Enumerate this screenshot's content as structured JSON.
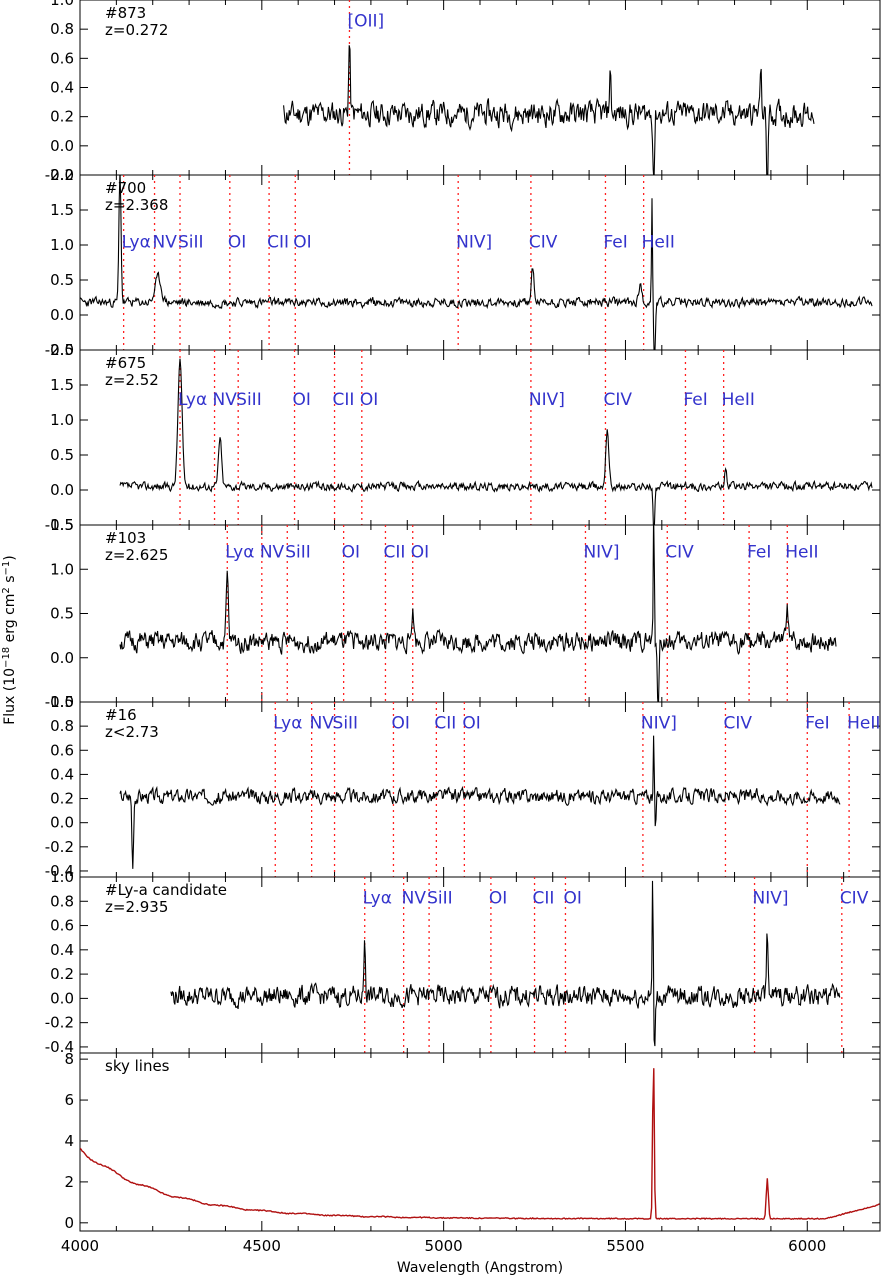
{
  "chart_data": {
    "type": "line",
    "xlabel": "Wavelength (Angstrom)",
    "ylabel": "Flux (10",
    "ylabel_sup": "−18",
    "ylabel_tail": " erg cm",
    "ylabel_sup2": "2",
    "ylabel_tail2": " s",
    "ylabel_sup3": "−1",
    "ylabel_end": ")",
    "xlim": [
      4000,
      6200
    ],
    "xticks": [
      4000,
      4500,
      5000,
      5500,
      6000
    ],
    "colors": {
      "spectrum": "#000000",
      "sky": "#b01010",
      "lines": "#ff2020",
      "labels": "#3333cc"
    },
    "panels": [
      {
        "id": "#873",
        "z": "z=0.272",
        "ylim": [
          -0.2,
          1.0
        ],
        "yticks": [
          "-0.2",
          "0.0",
          "0.2",
          "0.4",
          "0.6",
          "0.8",
          "1.0"
        ],
        "x_start": 4560,
        "x_end": 6020,
        "baseline": 0.22,
        "noise": 0.13,
        "seed": 11,
        "emission": [
          {
            "x": 4741,
            "h": 0.5,
            "w": 3
          },
          {
            "x": 5458,
            "h": 0.3,
            "w": 3
          },
          {
            "x": 5872,
            "h": 0.3,
            "w": 3
          }
        ],
        "dips": [
          {
            "x": 5578,
            "h": -0.45
          },
          {
            "x": 5890,
            "h": -0.5
          }
        ],
        "lines": [
          {
            "label": "[OII]",
            "x": 4741,
            "y": 0.86
          }
        ]
      },
      {
        "id": "#700",
        "z": "z=2.368",
        "ylim": [
          -0.5,
          2.0
        ],
        "yticks": [
          "-0.5",
          "0.0",
          "0.5",
          "1.0",
          "1.5",
          "2.0"
        ],
        "x_start": 4000,
        "x_end": 6180,
        "baseline": 0.18,
        "noise": 0.1,
        "seed": 23,
        "emission": [
          {
            "x": 4110,
            "h": 1.9,
            "w": 4
          },
          {
            "x": 4215,
            "h": 0.35,
            "w": 12
          },
          {
            "x": 5245,
            "h": 0.5,
            "w": 5
          },
          {
            "x": 5540,
            "h": 0.25,
            "w": 6
          },
          {
            "x": 5573,
            "h": 1.5,
            "w": 2
          }
        ],
        "dips": [
          {
            "x": 5580,
            "h": -0.9
          }
        ],
        "lines": [
          {
            "label": "Lyα",
            "x": 4120,
            "y": 1.05
          },
          {
            "label": "NV",
            "x": 4205,
            "y": 1.05
          },
          {
            "label": "SiII",
            "x": 4275,
            "y": 1.05
          },
          {
            "label": "OI",
            "x": 4412,
            "y": 1.05
          },
          {
            "label": "CII",
            "x": 4520,
            "y": 1.05
          },
          {
            "label": "OI",
            "x": 4592,
            "y": 1.05
          },
          {
            "label": "NIV]",
            "x": 5040,
            "y": 1.05
          },
          {
            "label": "CIV",
            "x": 5240,
            "y": 1.05
          },
          {
            "label": "FeI",
            "x": 5445,
            "y": 1.05
          },
          {
            "label": "HeII",
            "x": 5550,
            "y": 1.05
          }
        ]
      },
      {
        "id": "#675",
        "z": "z=2.52",
        "ylim": [
          -0.5,
          2.0
        ],
        "yticks": [
          "-0.5",
          "0.0",
          "0.5",
          "1.0",
          "1.5",
          "2.0"
        ],
        "x_start": 4110,
        "x_end": 6180,
        "baseline": 0.05,
        "noise": 0.09,
        "seed": 37,
        "emission": [
          {
            "x": 4275,
            "h": 1.8,
            "w": 8
          },
          {
            "x": 4385,
            "h": 0.7,
            "w": 6
          },
          {
            "x": 5450,
            "h": 0.85,
            "w": 6
          },
          {
            "x": 5775,
            "h": 0.2,
            "w": 5
          }
        ],
        "dips": [
          {
            "x": 5578,
            "h": -0.7
          }
        ],
        "lines": [
          {
            "label": "Lyα",
            "x": 4275,
            "y": 1.3
          },
          {
            "label": "NV",
            "x": 4370,
            "y": 1.3
          },
          {
            "label": "SiII",
            "x": 4435,
            "y": 1.3
          },
          {
            "label": "OI",
            "x": 4590,
            "y": 1.3
          },
          {
            "label": "CII",
            "x": 4700,
            "y": 1.3
          },
          {
            "label": "OI",
            "x": 4775,
            "y": 1.3
          },
          {
            "label": "NIV]",
            "x": 5240,
            "y": 1.3
          },
          {
            "label": "CIV",
            "x": 5445,
            "y": 1.3
          },
          {
            "label": "FeI",
            "x": 5665,
            "y": 1.3
          },
          {
            "label": "HeII",
            "x": 5770,
            "y": 1.3
          }
        ]
      },
      {
        "id": "#103",
        "z": "z=2.625",
        "ylim": [
          -0.5,
          1.5
        ],
        "yticks": [
          "-0.5",
          "0.0",
          "0.5",
          "1.0",
          "1.5"
        ],
        "x_start": 4110,
        "x_end": 6080,
        "baseline": 0.18,
        "noise": 0.17,
        "seed": 51,
        "emission": [
          {
            "x": 4405,
            "h": 0.75,
            "w": 4
          },
          {
            "x": 4915,
            "h": 0.35,
            "w": 5
          },
          {
            "x": 5578,
            "h": 1.5,
            "w": 2
          },
          {
            "x": 5945,
            "h": 0.45,
            "w": 4
          }
        ],
        "dips": [
          {
            "x": 5590,
            "h": -0.7
          }
        ],
        "lines": [
          {
            "label": "Lyα",
            "x": 4405,
            "y": 1.2
          },
          {
            "label": "NV",
            "x": 4500,
            "y": 1.2
          },
          {
            "label": "SiII",
            "x": 4570,
            "y": 1.2
          },
          {
            "label": "OI",
            "x": 4725,
            "y": 1.2
          },
          {
            "label": "CII",
            "x": 4840,
            "y": 1.2
          },
          {
            "label": "OI",
            "x": 4915,
            "y": 1.2
          },
          {
            "label": "NIV]",
            "x": 5390,
            "y": 1.2
          },
          {
            "label": "CIV",
            "x": 5615,
            "y": 1.2
          },
          {
            "label": "FeI",
            "x": 5840,
            "y": 1.2
          },
          {
            "label": "HeII",
            "x": 5945,
            "y": 1.2
          }
        ]
      },
      {
        "id": "#16",
        "z": "z<2.73",
        "ylim": [
          -0.45,
          1.0
        ],
        "yticks": [
          "-0.4",
          "-0.2",
          "0.0",
          "0.2",
          "0.4",
          "0.6",
          "0.8",
          "1.0"
        ],
        "x_start": 4110,
        "x_end": 6090,
        "baseline": 0.22,
        "noise": 0.09,
        "seed": 67,
        "emission": [
          {
            "x": 5578,
            "h": 0.55,
            "w": 2
          }
        ],
        "dips": [
          {
            "x": 4145,
            "h": -0.6
          },
          {
            "x": 5582,
            "h": -0.3
          }
        ],
        "lines": [
          {
            "label": "Lyα",
            "x": 4537,
            "y": 0.83
          },
          {
            "label": "NV",
            "x": 4637,
            "y": 0.83
          },
          {
            "label": "SiII",
            "x": 4700,
            "y": 0.83
          },
          {
            "label": "OI",
            "x": 4862,
            "y": 0.83
          },
          {
            "label": "CII",
            "x": 4980,
            "y": 0.83
          },
          {
            "label": "OI",
            "x": 5057,
            "y": 0.83
          },
          {
            "label": "NIV]",
            "x": 5548,
            "y": 0.83
          },
          {
            "label": "CIV",
            "x": 5775,
            "y": 0.83
          },
          {
            "label": "FeI",
            "x": 6000,
            "y": 0.83
          },
          {
            "label": "HeII",
            "x": 6115,
            "y": 0.83
          }
        ]
      },
      {
        "id": "#Ly-a candidate",
        "z": "z=2.935",
        "ylim": [
          -0.45,
          1.0
        ],
        "yticks": [
          "-0.4",
          "-0.2",
          "0.0",
          "0.2",
          "0.4",
          "0.6",
          "0.8",
          "1.0"
        ],
        "x_start": 4250,
        "x_end": 6090,
        "baseline": 0.02,
        "noise": 0.13,
        "seed": 79,
        "emission": [
          {
            "x": 4783,
            "h": 0.5,
            "w": 3
          },
          {
            "x": 5575,
            "h": 1.0,
            "w": 2
          },
          {
            "x": 5890,
            "h": 0.6,
            "w": 3
          }
        ],
        "dips": [
          {
            "x": 5580,
            "h": -0.45
          }
        ],
        "lines": [
          {
            "label": "Lyα",
            "x": 4783,
            "y": 0.83
          },
          {
            "label": "NV",
            "x": 4890,
            "y": 0.83
          },
          {
            "label": "SiII",
            "x": 4960,
            "y": 0.83
          },
          {
            "label": "OI",
            "x": 5130,
            "y": 0.83
          },
          {
            "label": "CII",
            "x": 5250,
            "y": 0.83
          },
          {
            "label": "OI",
            "x": 5335,
            "y": 0.83
          },
          {
            "label": "NIV]",
            "x": 5855,
            "y": 0.83
          },
          {
            "label": "CIV",
            "x": 6095,
            "y": 0.83
          }
        ]
      },
      {
        "id": "sky lines",
        "z": "",
        "ylim": [
          -0.4,
          8.3
        ],
        "yticks": [
          "0",
          "2",
          "4",
          "6",
          "8"
        ],
        "x_start": 4000,
        "x_end": 6200,
        "seed": 91,
        "sky": true,
        "lines": []
      }
    ]
  }
}
